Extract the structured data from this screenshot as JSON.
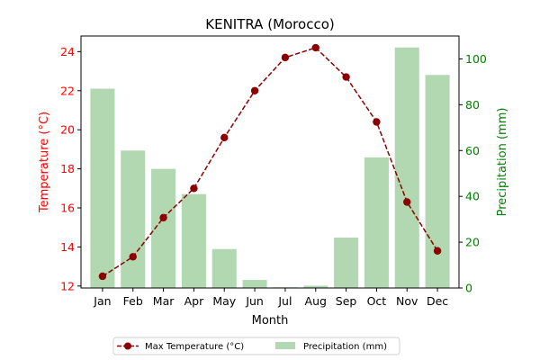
{
  "chart_data": {
    "type": "bar+line",
    "title": "KENITRA (Morocco)",
    "xlabel": "Month",
    "ylabel_left": "Temperature (°C)",
    "ylabel_right": "Precipitation (mm)",
    "categories": [
      "Jan",
      "Feb",
      "Mar",
      "Apr",
      "May",
      "Jun",
      "Jul",
      "Aug",
      "Sep",
      "Oct",
      "Nov",
      "Dec"
    ],
    "left_axis": {
      "ylim": [
        11.9,
        24.8
      ],
      "ticks": [
        12,
        14,
        16,
        18,
        20,
        22,
        24
      ]
    },
    "right_axis": {
      "ylim": [
        0,
        110
      ],
      "ticks": [
        0,
        20,
        40,
        60,
        80,
        100
      ]
    },
    "series": [
      {
        "name": "Max Temperature (°C)",
        "kind": "line",
        "axis": "left",
        "values": [
          12.5,
          13.5,
          15.5,
          17.0,
          19.6,
          22.0,
          23.7,
          24.2,
          22.7,
          20.4,
          16.3,
          13.8
        ]
      },
      {
        "name": "Precipitation (mm)",
        "kind": "bar",
        "axis": "right",
        "values": [
          87,
          60,
          52,
          41,
          17,
          3.5,
          0.3,
          1,
          22,
          57,
          105,
          93
        ]
      }
    ],
    "colors": {
      "temperature": "#8b0000",
      "temperature_axis": "#ff0000",
      "precip_bar": "#b2d8b2",
      "precip_axis": "#008000"
    },
    "legend_placement": "bottom-center",
    "grid": false
  }
}
